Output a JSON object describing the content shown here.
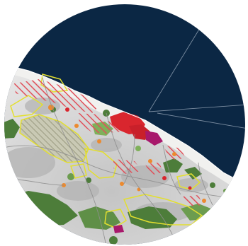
{
  "map": {
    "title": "",
    "colors": {
      "sea": "#0b2744",
      "land": "#d6d6d6",
      "land_dark": "#a9a9a9",
      "coast_light": "#f0f0ee",
      "urban_red": "#d9262e",
      "hatch_red": "#e0505a",
      "magenta": "#a8186b",
      "orange": "#ec8a2f",
      "green_dark": "#4d7d3a",
      "green_light": "#7fb05a",
      "yellow_outline": "#e6e23a",
      "hatch_grey": "#9b9b85",
      "roads": "#8e8e8e",
      "sea_lines": "#7a8ca0"
    },
    "layers": [
      "sea",
      "land-cover-grey",
      "forest-green",
      "urban-red",
      "red-hatched-zones",
      "yellow-outlined-zones",
      "roads",
      "sea-boundary-lines"
    ]
  }
}
